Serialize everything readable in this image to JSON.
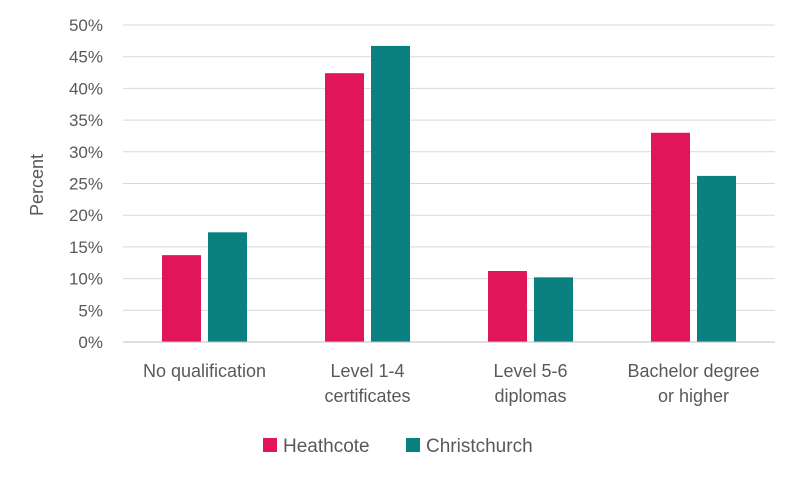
{
  "chart_data": {
    "type": "bar",
    "title": "",
    "ylabel": "Percent",
    "xlabel": "",
    "ylim": [
      0,
      50
    ],
    "yticks": [
      0,
      5,
      10,
      15,
      20,
      25,
      30,
      35,
      40,
      45,
      50
    ],
    "ytick_suffix": "%",
    "grid": true,
    "legend_position": "bottom",
    "categories": [
      [
        "No qualification"
      ],
      [
        "Level 1-4",
        "certificates"
      ],
      [
        "Level 5-6",
        "diplomas"
      ],
      [
        "Bachelor degree",
        "or higher"
      ]
    ],
    "series": [
      {
        "name": "Heathcote",
        "color": "#e0155a",
        "values": [
          13.7,
          42.4,
          11.2,
          33.0
        ]
      },
      {
        "name": "Christchurch",
        "color": "#0b8080",
        "values": [
          17.3,
          46.7,
          10.2,
          26.2
        ]
      }
    ]
  }
}
